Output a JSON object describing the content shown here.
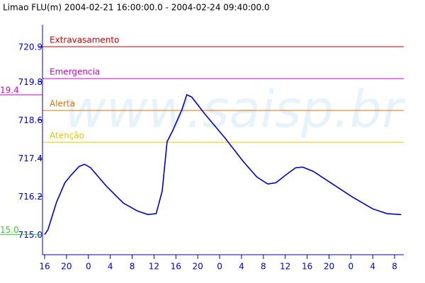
{
  "chart_data": {
    "type": "line",
    "title": "Limao FLU(m) 2004-02-21 16:00:00.0 - 2004-02-24 09:40:00.0",
    "watermark": "www.saisp.br",
    "x": [
      0,
      0.6,
      2.2,
      3.7,
      4.8,
      6.3,
      7.3,
      8.4,
      11.2,
      14.4,
      17.0,
      18.9,
      20.4,
      21.5,
      22.4,
      23.4,
      25.1,
      26.0,
      26.9,
      29.2,
      33.0,
      36.3,
      38.8,
      40.8,
      42.3,
      44.0,
      45.9,
      47.2,
      49.1,
      52.3,
      56.2,
      60.0,
      62.6,
      65.2
    ],
    "series": [
      {
        "color": "#0000cc",
        "values": [
          715.0,
          715.15,
          716.03,
          716.63,
          716.86,
          717.14,
          717.21,
          717.1,
          716.54,
          715.99,
          715.74,
          715.63,
          715.66,
          716.37,
          717.92,
          718.26,
          718.92,
          719.39,
          719.32,
          718.81,
          718.03,
          717.3,
          716.81,
          716.59,
          716.63,
          716.86,
          717.1,
          717.12,
          716.99,
          716.63,
          716.19,
          715.81,
          715.66,
          715.63
        ]
      }
    ],
    "thresholds": [
      {
        "name": "Extravasamento",
        "value": 720.9,
        "color": "#cc0000"
      },
      {
        "name": "Emergencia",
        "value": 719.9,
        "color": "#cc00cc"
      },
      {
        "name": "Alerta",
        "value": 718.9,
        "color": "#e07000"
      },
      {
        "name": "Atenção",
        "value": 717.9,
        "color": "#e8c800"
      }
    ],
    "max_label": "19.4",
    "min_label": "15.0",
    "xlim": [
      0,
      65.67
    ],
    "xticks": [
      {
        "value": 0,
        "label": "16"
      },
      {
        "value": 4,
        "label": "20"
      },
      {
        "value": 8,
        "label": "0"
      },
      {
        "value": 12,
        "label": "4"
      },
      {
        "value": 16,
        "label": "8"
      },
      {
        "value": 20,
        "label": "12"
      },
      {
        "value": 24,
        "label": "16"
      },
      {
        "value": 28,
        "label": "20"
      },
      {
        "value": 32,
        "label": "0"
      },
      {
        "value": 36,
        "label": "4"
      },
      {
        "value": 40,
        "label": "8"
      },
      {
        "value": 44,
        "label": "12"
      },
      {
        "value": 48,
        "label": "16"
      },
      {
        "value": 52,
        "label": "20"
      },
      {
        "value": 56,
        "label": "0"
      },
      {
        "value": 60,
        "label": "4"
      },
      {
        "value": 64,
        "label": "8"
      }
    ],
    "ylim": [
      714.37,
      721.59
    ],
    "yticks": [
      720.9,
      719.8,
      718.6,
      717.4,
      716.2,
      {
        "value": 715.0,
        "label": "715.0"
      }
    ]
  }
}
